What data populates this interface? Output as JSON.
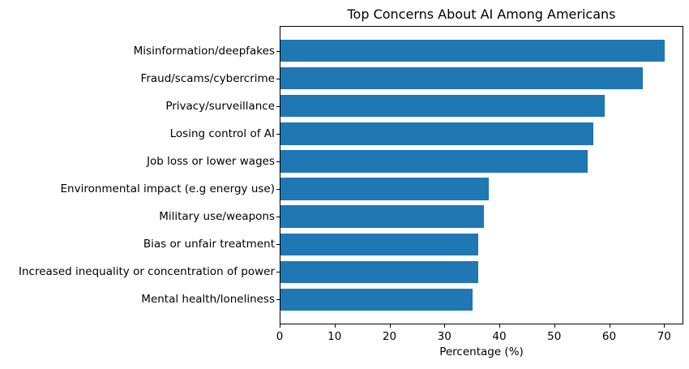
{
  "chart_data": {
    "type": "bar",
    "orientation": "horizontal",
    "title": "Top Concerns About AI Among Americans",
    "xlabel": "Percentage (%)",
    "ylabel": "",
    "categories": [
      "Misinformation/deepfakes",
      "Fraud/scams/cybercrime",
      "Privacy/surveillance",
      "Losing control of AI",
      "Job loss or lower wages",
      "Environmental impact (e.g energy use)",
      "Military use/weapons",
      "Bias or unfair treatment",
      "Increased inequality or concentration of power",
      "Mental health/loneliness"
    ],
    "values": [
      70,
      66,
      59,
      57,
      56,
      38,
      37,
      36,
      36,
      35
    ],
    "xticks": [
      0,
      10,
      20,
      30,
      40,
      50,
      60,
      70
    ],
    "xlim": [
      0,
      73.5
    ],
    "bar_color": "#1f77b4",
    "grid": false,
    "legend": null
  }
}
